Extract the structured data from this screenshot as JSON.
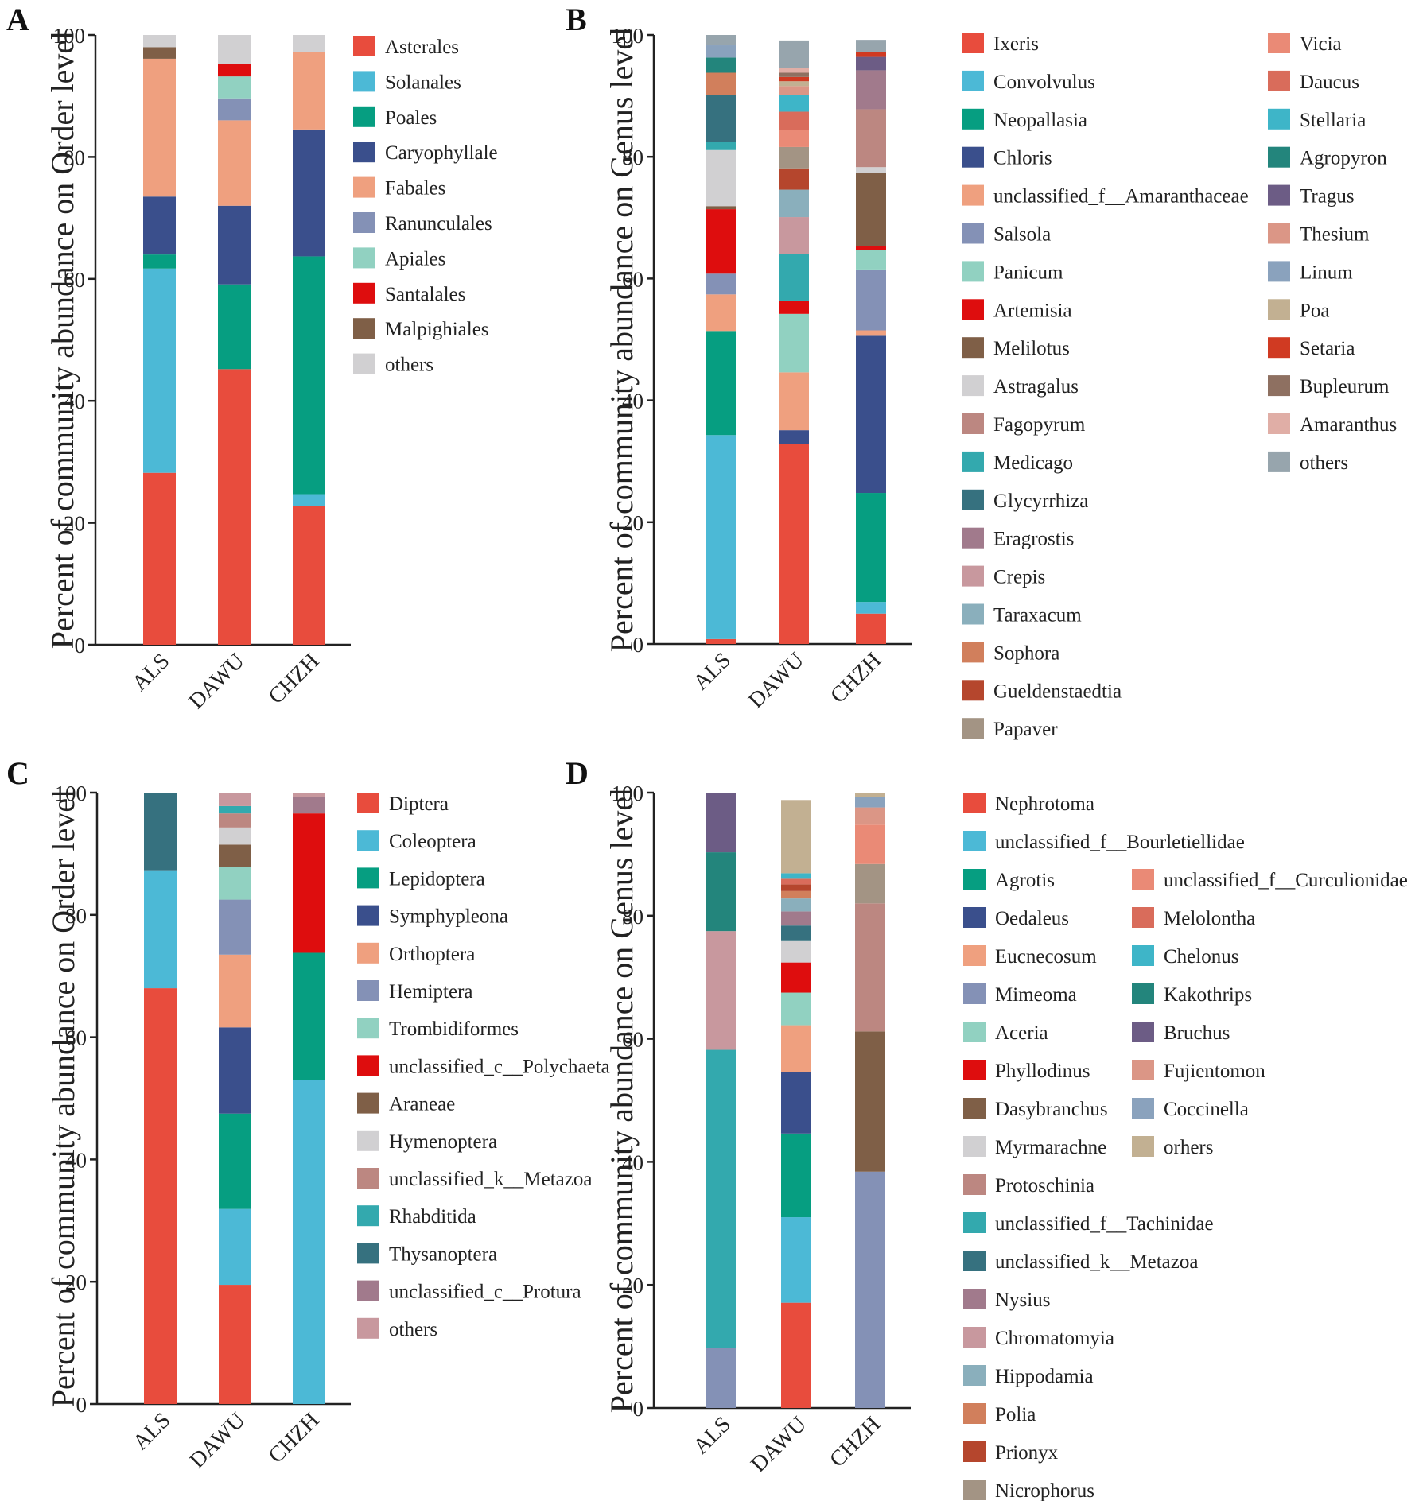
{
  "figure": {
    "panels": [
      "A",
      "B",
      "C",
      "D"
    ]
  },
  "chart_data": [
    {
      "panel": "A",
      "type": "bar",
      "stacked": true,
      "title": "",
      "xlabel": "",
      "ylabel": "Percent of community abundance on Order level",
      "ylim": [
        0,
        100
      ],
      "yticks": [
        0,
        20,
        40,
        60,
        80,
        100
      ],
      "categories": [
        "ALS",
        "DAWU",
        "CHZH"
      ],
      "legend_columns": 1,
      "series": [
        {
          "name": "Asterales",
          "color": "#e84c3d",
          "values": [
            28.2,
            45.2,
            22.8
          ]
        },
        {
          "name": "Solanales",
          "color": "#4cb9d6",
          "values": [
            33.5,
            0,
            1.9
          ]
        },
        {
          "name": "Poales",
          "color": "#069e81",
          "values": [
            2.3,
            13.9,
            39.0
          ]
        },
        {
          "name": "Caryophyllale",
          "color": "#3a4f8c",
          "values": [
            9.5,
            12.9,
            20.8
          ]
        },
        {
          "name": "Fabales",
          "color": "#efa07f",
          "values": [
            22.6,
            14.0,
            12.7
          ]
        },
        {
          "name": "Ranunculales",
          "color": "#8491b6",
          "values": [
            0,
            3.6,
            0
          ]
        },
        {
          "name": "Apiales",
          "color": "#91d1c1",
          "values": [
            0,
            3.6,
            0
          ]
        },
        {
          "name": "Santalales",
          "color": "#de0d0e",
          "values": [
            0,
            2.0,
            0
          ]
        },
        {
          "name": "Malpighiales",
          "color": "#7f5f47",
          "values": [
            1.9,
            0,
            0
          ]
        },
        {
          "name": "others",
          "color": "#d1d0d2",
          "values": [
            2.0,
            4.8,
            2.8
          ]
        }
      ]
    },
    {
      "panel": "B",
      "type": "bar",
      "stacked": true,
      "title": "",
      "xlabel": "",
      "ylabel": "Percent of community abundance on Genus level",
      "ylim": [
        0,
        100
      ],
      "yticks": [
        0,
        20,
        40,
        60,
        80,
        100
      ],
      "categories": [
        "ALS",
        "DAWU",
        "CHZH"
      ],
      "legend_columns": 2,
      "legend_split": 19,
      "series": [
        {
          "name": "Ixeris",
          "color": "#e84c3d",
          "values": [
            0.8,
            32.8,
            5.0
          ]
        },
        {
          "name": "Convolvulus",
          "color": "#4cb9d6",
          "values": [
            33.5,
            0,
            1.9
          ]
        },
        {
          "name": "Neopallasia",
          "color": "#069e81",
          "values": [
            17.1,
            0,
            17.9
          ]
        },
        {
          "name": "Chloris",
          "color": "#3a4f8c",
          "values": [
            0,
            2.3,
            25.8
          ]
        },
        {
          "name": "unclassified_f__Amaranthaceae",
          "color": "#efa07f",
          "values": [
            6.0,
            9.5,
            0.9
          ]
        },
        {
          "name": "Salsola",
          "color": "#8491b6",
          "values": [
            3.4,
            0,
            10.0
          ]
        },
        {
          "name": "Panicum",
          "color": "#91d1c1",
          "values": [
            0,
            9.6,
            3.2
          ]
        },
        {
          "name": "Artemisia",
          "color": "#de0d0e",
          "values": [
            10.6,
            2.2,
            0.6
          ]
        },
        {
          "name": "Melilotus",
          "color": "#7f5f47",
          "values": [
            0.5,
            0,
            12.0
          ]
        },
        {
          "name": "Astragalus",
          "color": "#d1d0d2",
          "values": [
            9.2,
            0,
            1.0
          ]
        },
        {
          "name": "Fagopyrum",
          "color": "#bc8781",
          "values": [
            0,
            0,
            9.5
          ]
        },
        {
          "name": "Medicago",
          "color": "#33a9ae",
          "values": [
            1.3,
            7.6,
            0
          ]
        },
        {
          "name": "Glycyrrhiza",
          "color": "#36717f",
          "values": [
            7.8,
            0,
            0
          ]
        },
        {
          "name": "Eragrostis",
          "color": "#a17a8c",
          "values": [
            0,
            0,
            6.4
          ]
        },
        {
          "name": "Crepis",
          "color": "#c8989e",
          "values": [
            0,
            6.1,
            0
          ]
        },
        {
          "name": "Taraxacum",
          "color": "#8aafbc",
          "values": [
            0,
            4.5,
            0
          ]
        },
        {
          "name": "Sophora",
          "color": "#d17f5c",
          "values": [
            3.6,
            0,
            0
          ]
        },
        {
          "name": "Gueldenstaedtia",
          "color": "#b5462d",
          "values": [
            0,
            3.5,
            0
          ]
        },
        {
          "name": "Papaver",
          "color": "#a39484",
          "values": [
            0,
            3.5,
            0
          ]
        },
        {
          "name": "Vicia",
          "color": "#ea8a76",
          "values": [
            0,
            2.8,
            0
          ]
        },
        {
          "name": "Daucus",
          "color": "#d96c5b",
          "values": [
            0,
            3.0,
            0
          ]
        },
        {
          "name": "Stellaria",
          "color": "#3eb5c8",
          "values": [
            0,
            2.7,
            0
          ]
        },
        {
          "name": "Agropyron",
          "color": "#23857c",
          "values": [
            2.5,
            0,
            0
          ]
        },
        {
          "name": "Tragus",
          "color": "#6c5c85",
          "values": [
            0,
            0,
            2.2
          ]
        },
        {
          "name": "Thesium",
          "color": "#db9686",
          "values": [
            0,
            1.5,
            0
          ]
        },
        {
          "name": "Linum",
          "color": "#8aa2bd",
          "values": [
            2.0,
            0,
            0
          ]
        },
        {
          "name": "Poa",
          "color": "#c2b092",
          "values": [
            0,
            0.8,
            0
          ]
        },
        {
          "name": "Setaria",
          "color": "#d03a22",
          "values": [
            0,
            0.7,
            0.8
          ]
        },
        {
          "name": "Bupleurum",
          "color": "#8e7061",
          "values": [
            0,
            0.7,
            0
          ]
        },
        {
          "name": "Amaranthus",
          "color": "#e0aea6",
          "values": [
            0,
            0.8,
            0
          ]
        },
        {
          "name": "others",
          "color": "#97a5ad",
          "values": [
            1.7,
            4.5,
            2.0
          ]
        }
      ]
    },
    {
      "panel": "C",
      "type": "bar",
      "stacked": true,
      "title": "",
      "xlabel": "",
      "ylabel": "Percent of community abundance on Order level",
      "ylim": [
        0,
        100
      ],
      "yticks": [
        0,
        20,
        40,
        60,
        80,
        100
      ],
      "categories": [
        "ALS",
        "DAWU",
        "CHZH"
      ],
      "legend_columns": 1,
      "series": [
        {
          "name": "Diptera",
          "color": "#e84c3d",
          "values": [
            68.0,
            19.5,
            0
          ]
        },
        {
          "name": "Coleoptera",
          "color": "#4cb9d6",
          "values": [
            19.3,
            12.4,
            53.0
          ]
        },
        {
          "name": "Lepidoptera",
          "color": "#069e81",
          "values": [
            0,
            15.6,
            20.8
          ]
        },
        {
          "name": "Symphypleona",
          "color": "#3a4f8c",
          "values": [
            0,
            14.1,
            0
          ]
        },
        {
          "name": "Orthoptera",
          "color": "#efa07f",
          "values": [
            0,
            11.9,
            0
          ]
        },
        {
          "name": "Hemiptera",
          "color": "#8491b6",
          "values": [
            0,
            9.0,
            0
          ]
        },
        {
          "name": "Trombidiformes",
          "color": "#91d1c1",
          "values": [
            0,
            5.4,
            0
          ]
        },
        {
          "name": "unclassified_c__Polychaeta",
          "color": "#de0d0e",
          "values": [
            0,
            0,
            22.8
          ]
        },
        {
          "name": "Araneae",
          "color": "#7f5f47",
          "values": [
            0,
            3.6,
            0
          ]
        },
        {
          "name": "Hymenoptera",
          "color": "#d1d0d2",
          "values": [
            0,
            2.8,
            0
          ]
        },
        {
          "name": "unclassified_k__Metazoa",
          "color": "#bc8781",
          "values": [
            0,
            2.3,
            0
          ]
        },
        {
          "name": "Rhabditida",
          "color": "#33a9ae",
          "values": [
            0,
            1.2,
            0
          ]
        },
        {
          "name": "Thysanoptera",
          "color": "#36717f",
          "values": [
            12.7,
            0,
            0
          ]
        },
        {
          "name": "unclassified_c__Protura",
          "color": "#a17a8c",
          "values": [
            0,
            0,
            2.7
          ]
        },
        {
          "name": "others",
          "color": "#c8989e",
          "values": [
            0,
            2.2,
            0.7
          ]
        }
      ]
    },
    {
      "panel": "D",
      "type": "bar",
      "stacked": true,
      "title": "",
      "xlabel": "",
      "ylabel": "Percent of community abundance on Genus level",
      "ylim": [
        0,
        100
      ],
      "yticks": [
        0,
        20,
        40,
        60,
        80,
        100
      ],
      "categories": [
        "ALS",
        "DAWU",
        "CHZH"
      ],
      "legend_columns": 2,
      "legend_split": 19,
      "legend_col2_offset": 2,
      "series": [
        {
          "name": "Nephrotoma",
          "color": "#e84c3d",
          "values": [
            0,
            17.1,
            0
          ]
        },
        {
          "name": "unclassified_f__Bourletiellidae",
          "color": "#4cb9d6",
          "values": [
            0,
            13.9,
            0
          ]
        },
        {
          "name": "Agrotis",
          "color": "#069e81",
          "values": [
            0,
            13.6,
            0
          ]
        },
        {
          "name": "Oedaleus",
          "color": "#3a4f8c",
          "values": [
            0,
            10.0,
            0
          ]
        },
        {
          "name": "Eucnecosum",
          "color": "#efa07f",
          "values": [
            0,
            7.6,
            0
          ]
        },
        {
          "name": "Mimeoma",
          "color": "#8491b6",
          "values": [
            9.8,
            0,
            38.4
          ]
        },
        {
          "name": "Aceria",
          "color": "#91d1c1",
          "values": [
            0,
            5.3,
            0
          ]
        },
        {
          "name": "Phyllodinus",
          "color": "#de0d0e",
          "values": [
            0,
            4.9,
            0
          ]
        },
        {
          "name": "Dasybranchus",
          "color": "#7f5f47",
          "values": [
            0,
            0,
            22.8
          ]
        },
        {
          "name": "Myrmarachne",
          "color": "#d1d0d2",
          "values": [
            0,
            3.6,
            0
          ]
        },
        {
          "name": "Protoschinia",
          "color": "#bc8781",
          "values": [
            0,
            0,
            20.8
          ]
        },
        {
          "name": "unclassified_f__Tachinidae",
          "color": "#33a9ae",
          "values": [
            48.4,
            0,
            0
          ]
        },
        {
          "name": "unclassified_k__Metazoa",
          "color": "#36717f",
          "values": [
            0,
            2.4,
            0
          ]
        },
        {
          "name": "Nysius",
          "color": "#a17a8c",
          "values": [
            0,
            2.3,
            0
          ]
        },
        {
          "name": "Chromatomyia",
          "color": "#c8989e",
          "values": [
            19.3,
            0,
            0
          ]
        },
        {
          "name": "Hippodamia",
          "color": "#8aafbc",
          "values": [
            0,
            2.1,
            0
          ]
        },
        {
          "name": "Polia",
          "color": "#d17f5c",
          "values": [
            0,
            1.2,
            0
          ]
        },
        {
          "name": "Prionyx",
          "color": "#b5462d",
          "values": [
            0,
            1.1,
            0
          ]
        },
        {
          "name": "Nicrophorus",
          "color": "#a39484",
          "values": [
            0,
            0,
            6.4
          ]
        },
        {
          "name": "unclassified_f__Curculionidae",
          "color": "#ea8a76",
          "values": [
            0,
            0,
            6.4
          ]
        },
        {
          "name": "Melolontha",
          "color": "#d96c5b",
          "values": [
            0,
            0.9,
            0
          ]
        },
        {
          "name": "Chelonus",
          "color": "#3eb5c8",
          "values": [
            0,
            0.9,
            0
          ]
        },
        {
          "name": "Kakothrips",
          "color": "#23857c",
          "values": [
            12.8,
            0,
            0
          ]
        },
        {
          "name": "Bruchus",
          "color": "#6c5c85",
          "values": [
            9.7,
            0,
            0
          ]
        },
        {
          "name": "Fujientomon",
          "color": "#db9686",
          "values": [
            0,
            0,
            2.8
          ]
        },
        {
          "name": "Coccinella",
          "color": "#8aa2bd",
          "values": [
            0,
            0,
            1.7
          ]
        },
        {
          "name": "orhers",
          "color": "#c2b092",
          "values": [
            0,
            11.9,
            0.7
          ]
        }
      ]
    }
  ]
}
